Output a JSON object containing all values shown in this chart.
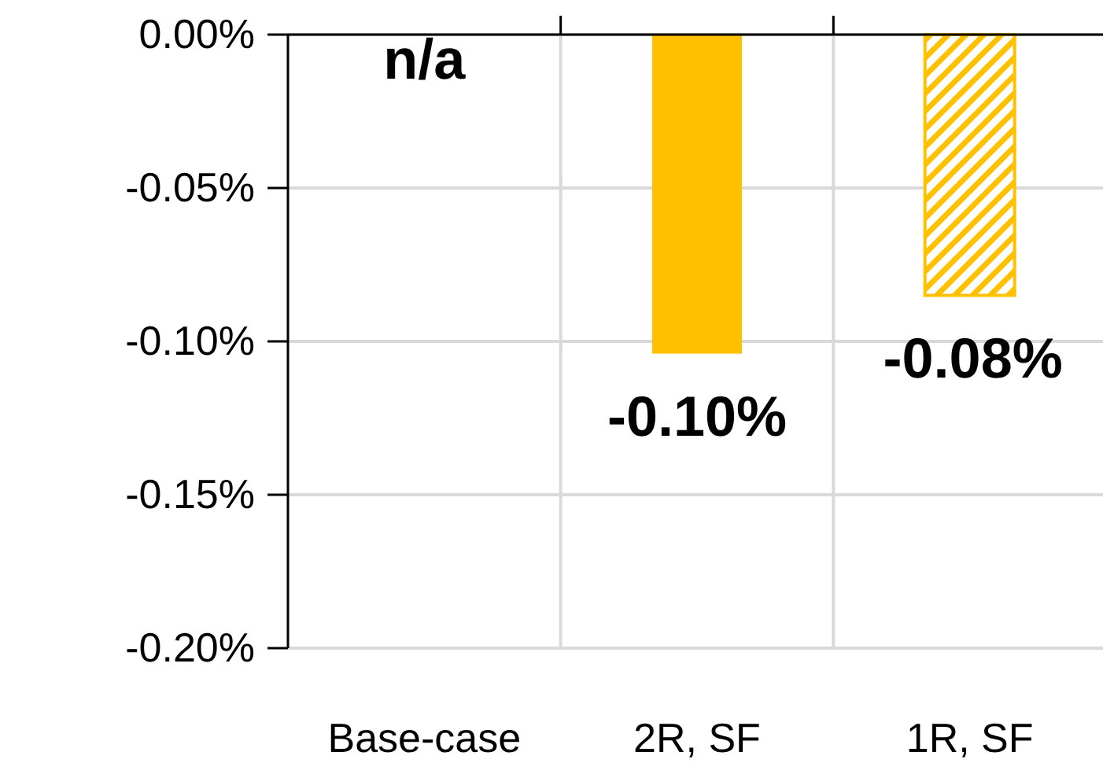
{
  "chart_data": {
    "type": "bar",
    "categories": [
      "Base-case",
      "2R, SF",
      "1R, SF"
    ],
    "values": [
      null,
      -0.104,
      -0.085
    ],
    "colors": [
      null,
      "#ffc000",
      "#ffc000"
    ],
    "value_labels": [
      "n/a",
      "-0.10%",
      "-0.08%"
    ],
    "ylim": [
      -0.2,
      0
    ],
    "yticks": [
      {
        "value": 0,
        "label": "0.00%"
      },
      {
        "value": -0.05,
        "label": "-0.05%"
      },
      {
        "value": -0.1,
        "label": "-0.10%"
      },
      {
        "value": -0.15,
        "label": "-0.15%"
      },
      {
        "value": -0.2,
        "label": "-0.20%"
      }
    ],
    "grid": true
  }
}
